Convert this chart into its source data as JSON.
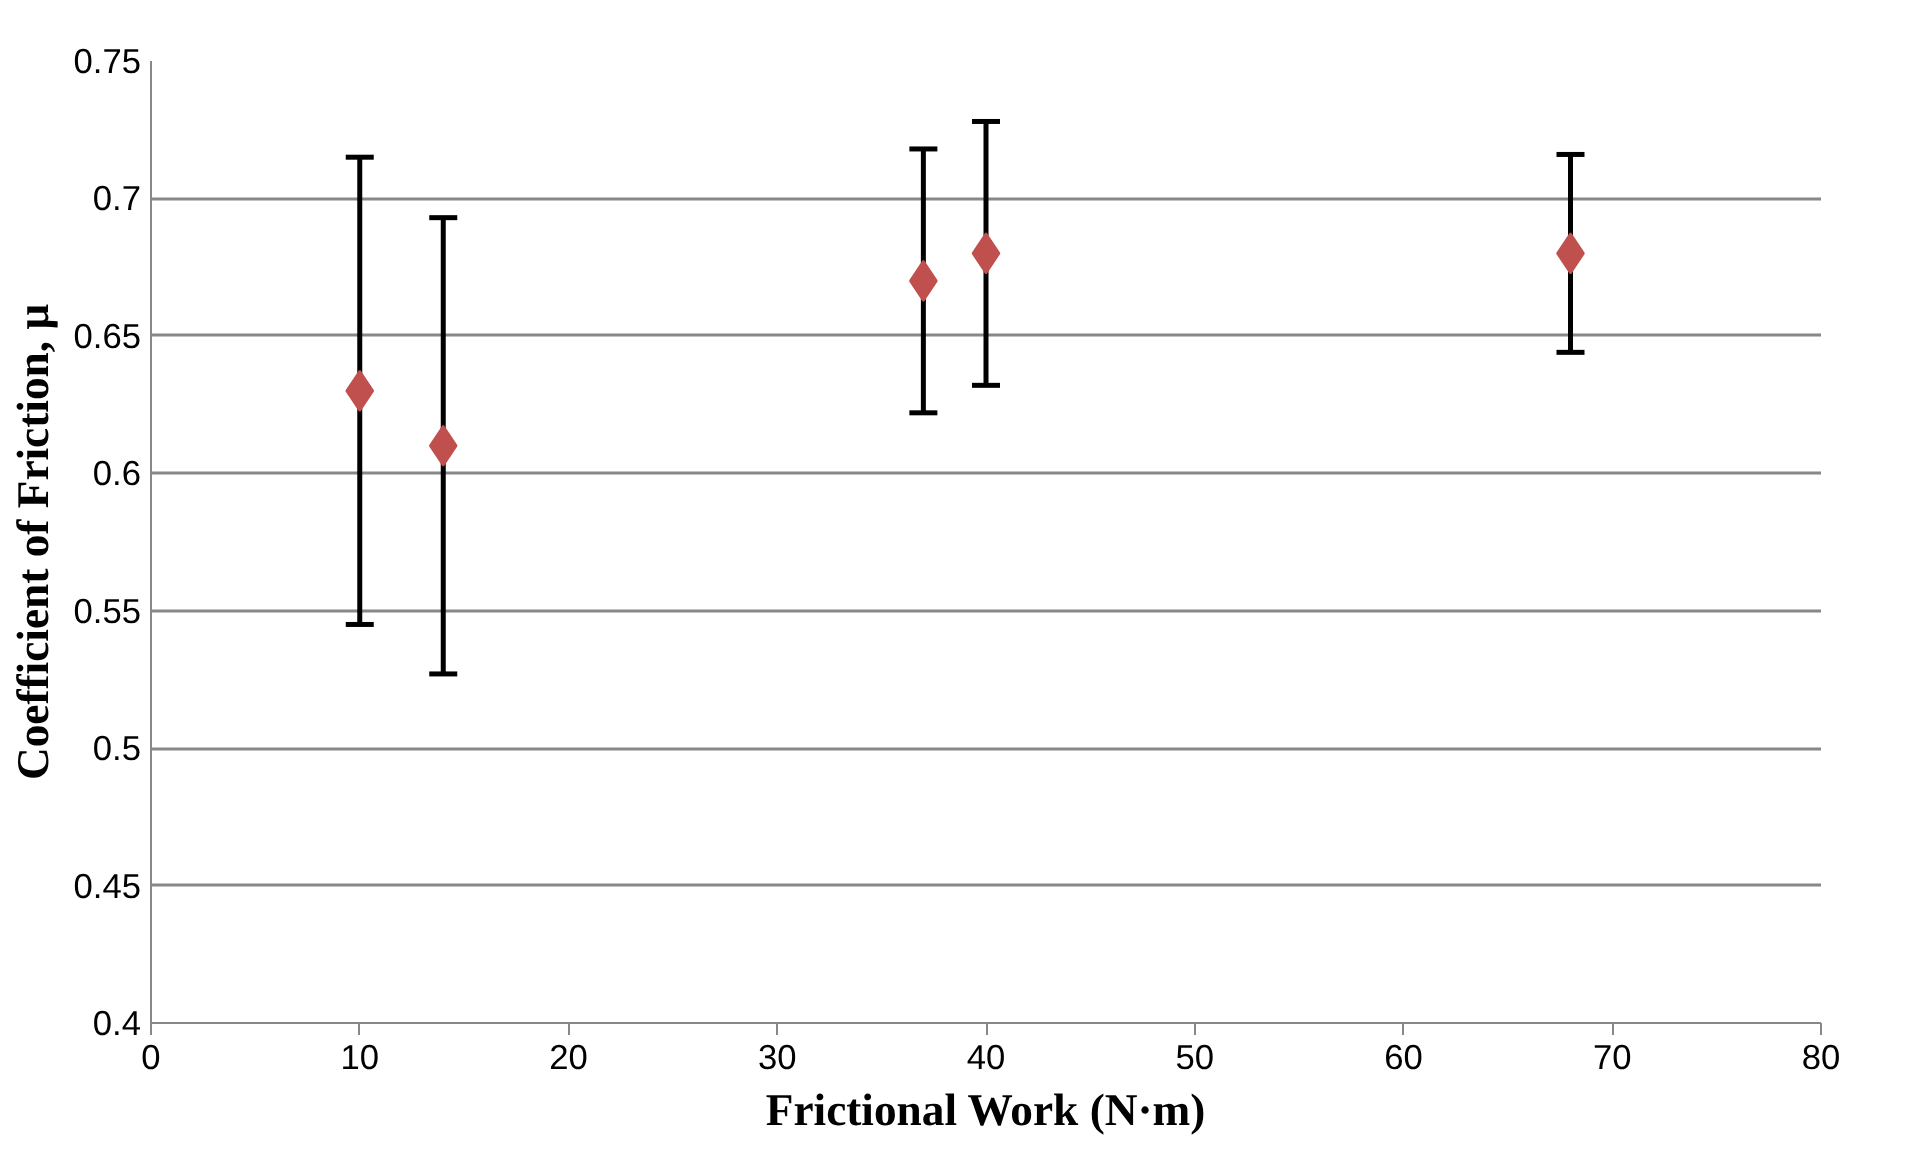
{
  "chart_data": {
    "type": "scatter",
    "xlabel": "Frictional Work (N·m)",
    "ylabel": "Coefficient of Friction, μ",
    "x": [
      10,
      14,
      37,
      40,
      68
    ],
    "series": [
      {
        "color": "#c0504d",
        "values": [
          0.63,
          0.61,
          0.67,
          0.68,
          0.68
        ],
        "errors": [
          [
            0.545,
            0.715
          ],
          [
            0.527,
            0.693
          ],
          [
            0.622,
            0.718
          ],
          [
            0.632,
            0.728
          ],
          [
            0.644,
            0.716
          ]
        ]
      }
    ],
    "xlim": [
      0,
      80
    ],
    "xticks": [
      0,
      10,
      20,
      30,
      40,
      50,
      60,
      70,
      80
    ],
    "ylim": [
      0.4,
      0.75
    ],
    "yticks": [
      0.4,
      0.45,
      0.5,
      0.55,
      0.6,
      0.65,
      0.7,
      0.75
    ],
    "grid": "y",
    "marker": "diamond"
  }
}
